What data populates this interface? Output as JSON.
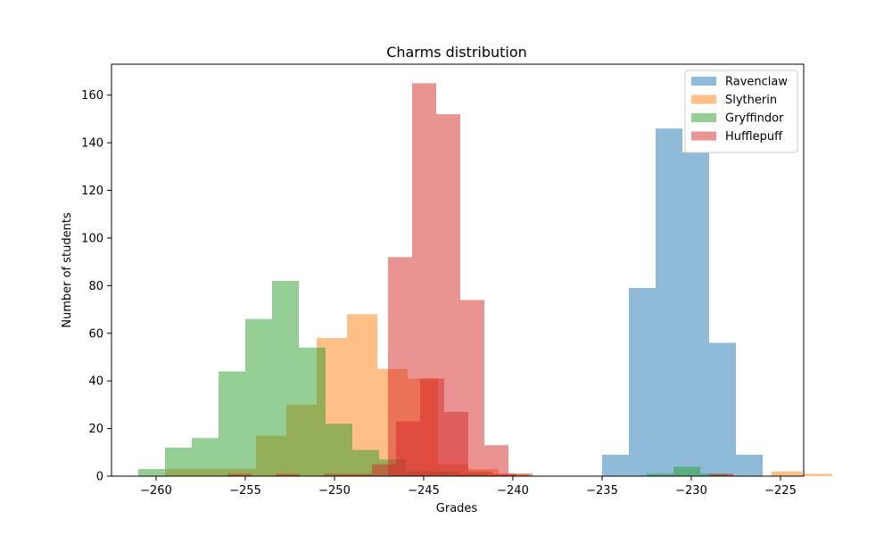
{
  "chart_data": {
    "type": "bar",
    "title": "Charms distribution",
    "xlabel": "Grades",
    "ylabel": "Number of students",
    "xlim": [
      -262.5,
      -223.7
    ],
    "ylim": [
      0,
      173
    ],
    "xticks": [
      -260,
      -255,
      -250,
      -245,
      -240,
      -235,
      -230,
      -225
    ],
    "yticks": [
      0,
      20,
      40,
      60,
      80,
      100,
      120,
      140,
      160
    ],
    "xtick_labels": [
      "−260",
      "−255",
      "−250",
      "−245",
      "−240",
      "−235",
      "−230",
      "−225"
    ],
    "ytick_labels": [
      "0",
      "20",
      "40",
      "60",
      "80",
      "100",
      "120",
      "140",
      "160"
    ],
    "grid": false,
    "legend_position": "top-right",
    "alpha": 0.5,
    "series": [
      {
        "name": "Ravenclaw",
        "color": "#1f77b4",
        "bin_start": -235.0,
        "bin_width": 1.5,
        "counts": [
          9,
          79,
          146,
          136,
          56,
          9
        ]
      },
      {
        "name": "Slytherin",
        "color": "#ff7f0e",
        "bin_start": -259.5,
        "bin_width": 1.7,
        "counts": [
          3,
          3,
          3,
          17,
          30,
          58,
          68,
          45,
          41,
          5,
          3,
          1,
          0,
          0,
          0,
          0,
          0,
          0,
          0,
          0,
          2,
          1
        ]
      },
      {
        "name": "Gryffindor",
        "color": "#2ca02c",
        "bin_start": -261.0,
        "bin_width": 1.5,
        "counts": [
          3,
          12,
          16,
          44,
          66,
          82,
          54,
          22,
          11,
          7,
          2,
          2,
          1,
          0,
          0,
          0,
          0,
          0,
          0,
          1,
          4,
          1
        ]
      },
      {
        "name": "Hufflepuff",
        "color": "#d62728",
        "bin_start": -256.0,
        "bin_width": 1.35,
        "counts": [
          1,
          0,
          1,
          0,
          1,
          1,
          5,
          23,
          41,
          27,
          2,
          1,
          0,
          0,
          0,
          0,
          0,
          0,
          0,
          0,
          1,
          0
        ]
      },
      {
        "name": "Hufflepuff",
        "color": "#d62728",
        "bin_start": -247.0,
        "bin_width": 1.35,
        "counts": [
          92,
          165,
          152,
          74,
          13,
          1
        ]
      }
    ]
  }
}
